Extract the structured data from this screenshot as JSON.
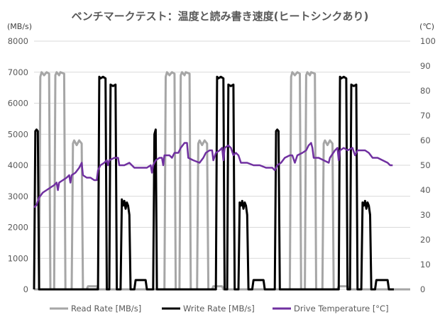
{
  "chart_data": {
    "type": "line",
    "title": "ベンチマークテスト：温度と読み書き速度(ヒートシンクあり)",
    "y_left_unit": "(MB/s)",
    "y_right_unit": "(℃)",
    "y_left_range": [
      0,
      8000
    ],
    "y_right_range": [
      0,
      100
    ],
    "y_left_ticks": [
      "0",
      "1000",
      "2000",
      "3000",
      "4000",
      "5000",
      "6000",
      "7000",
      "8000"
    ],
    "y_right_ticks": [
      "0",
      "10",
      "20",
      "30",
      "40",
      "50",
      "60",
      "70",
      "80",
      "90",
      "100"
    ],
    "x_range": [
      0,
      300
    ],
    "grid": true,
    "legend_position": "bottom",
    "colors": {
      "read": "#a6a6a6",
      "write": "#000000",
      "temp": "#7030a0"
    },
    "series": [
      {
        "name": "Read Rate [MB/s]",
        "axis": "left",
        "points": [
          [
            0,
            0
          ],
          [
            4,
            0
          ],
          [
            5,
            6850
          ],
          [
            6,
            7000
          ],
          [
            8,
            6900
          ],
          [
            10,
            7000
          ],
          [
            12,
            6950
          ],
          [
            13,
            0
          ],
          [
            16,
            0
          ],
          [
            17,
            6900
          ],
          [
            18,
            7000
          ],
          [
            20,
            6900
          ],
          [
            21,
            7000
          ],
          [
            24,
            6950
          ],
          [
            25,
            0
          ],
          [
            30,
            0
          ],
          [
            31,
            4700
          ],
          [
            32,
            4800
          ],
          [
            34,
            4650
          ],
          [
            36,
            4800
          ],
          [
            38,
            4700
          ],
          [
            39,
            0
          ],
          [
            42,
            0
          ],
          [
            43,
            100
          ],
          [
            50,
            100
          ],
          [
            51,
            0
          ],
          [
            104,
            0
          ],
          [
            105,
            6850
          ],
          [
            106,
            7000
          ],
          [
            108,
            6900
          ],
          [
            110,
            7000
          ],
          [
            112,
            6950
          ],
          [
            113,
            0
          ],
          [
            116,
            0
          ],
          [
            117,
            6900
          ],
          [
            118,
            7000
          ],
          [
            120,
            6900
          ],
          [
            121,
            7000
          ],
          [
            124,
            6950
          ],
          [
            125,
            0
          ],
          [
            130,
            0
          ],
          [
            131,
            4700
          ],
          [
            132,
            4800
          ],
          [
            134,
            4650
          ],
          [
            136,
            4800
          ],
          [
            138,
            4700
          ],
          [
            139,
            0
          ],
          [
            142,
            0
          ],
          [
            143,
            100
          ],
          [
            150,
            100
          ],
          [
            151,
            0
          ],
          [
            204,
            0
          ],
          [
            205,
            6850
          ],
          [
            206,
            7000
          ],
          [
            208,
            6900
          ],
          [
            210,
            7000
          ],
          [
            212,
            6950
          ],
          [
            213,
            0
          ],
          [
            216,
            0
          ],
          [
            217,
            6900
          ],
          [
            218,
            7000
          ],
          [
            220,
            6900
          ],
          [
            221,
            7000
          ],
          [
            224,
            6950
          ],
          [
            225,
            0
          ],
          [
            230,
            0
          ],
          [
            231,
            4700
          ],
          [
            232,
            4800
          ],
          [
            234,
            4650
          ],
          [
            236,
            4800
          ],
          [
            238,
            4700
          ],
          [
            239,
            0
          ],
          [
            242,
            0
          ],
          [
            243,
            100
          ],
          [
            250,
            100
          ],
          [
            251,
            0
          ],
          [
            300,
            0
          ]
        ]
      },
      {
        "name": "Write Rate [MB/s]",
        "axis": "left",
        "points": [
          [
            0,
            0
          ],
          [
            1,
            5100
          ],
          [
            2,
            5150
          ],
          [
            3,
            5100
          ],
          [
            4,
            0
          ],
          [
            51,
            0
          ],
          [
            52,
            6850
          ],
          [
            53,
            6800
          ],
          [
            55,
            6850
          ],
          [
            57,
            6800
          ],
          [
            58,
            0
          ],
          [
            60,
            0
          ],
          [
            61,
            6600
          ],
          [
            63,
            6550
          ],
          [
            65,
            6600
          ],
          [
            66,
            0
          ],
          [
            69,
            0
          ],
          [
            70,
            2900
          ],
          [
            71,
            2700
          ],
          [
            72,
            2850
          ],
          [
            73,
            2600
          ],
          [
            74,
            2800
          ],
          [
            75,
            2700
          ],
          [
            76,
            2400
          ],
          [
            77,
            0
          ],
          [
            80,
            0
          ],
          [
            81,
            300
          ],
          [
            89,
            300
          ],
          [
            90,
            0
          ],
          [
            95,
            0
          ],
          [
            96,
            5000
          ],
          [
            97,
            5150
          ],
          [
            98,
            0
          ],
          [
            145,
            0
          ],
          [
            146,
            6850
          ],
          [
            147,
            6800
          ],
          [
            149,
            6850
          ],
          [
            151,
            6800
          ],
          [
            152,
            0
          ],
          [
            154,
            0
          ],
          [
            155,
            6600
          ],
          [
            157,
            6550
          ],
          [
            159,
            6600
          ],
          [
            160,
            0
          ],
          [
            163,
            0
          ],
          [
            164,
            2800
          ],
          [
            165,
            2700
          ],
          [
            166,
            2850
          ],
          [
            167,
            2600
          ],
          [
            168,
            2800
          ],
          [
            169,
            2700
          ],
          [
            170,
            2400
          ],
          [
            171,
            0
          ],
          [
            174,
            0
          ],
          [
            175,
            300
          ],
          [
            183,
            300
          ],
          [
            184,
            0
          ],
          [
            192,
            0
          ],
          [
            193,
            5100
          ],
          [
            194,
            5150
          ],
          [
            195,
            5100
          ],
          [
            196,
            0
          ],
          [
            243,
            0
          ],
          [
            244,
            6850
          ],
          [
            245,
            6800
          ],
          [
            247,
            6850
          ],
          [
            249,
            6800
          ],
          [
            250,
            0
          ],
          [
            252,
            0
          ],
          [
            253,
            6600
          ],
          [
            255,
            6550
          ],
          [
            257,
            6600
          ],
          [
            258,
            0
          ],
          [
            261,
            0
          ],
          [
            262,
            2800
          ],
          [
            263,
            2700
          ],
          [
            264,
            2850
          ],
          [
            265,
            2600
          ],
          [
            266,
            2800
          ],
          [
            267,
            2700
          ],
          [
            268,
            2400
          ],
          [
            269,
            0
          ],
          [
            272,
            0
          ],
          [
            273,
            300
          ],
          [
            282,
            300
          ],
          [
            283,
            0
          ],
          [
            287,
            0
          ]
        ]
      },
      {
        "name": "Drive Temperature [°C]",
        "axis": "right",
        "points": [
          [
            0,
            33
          ],
          [
            2,
            34
          ],
          [
            4,
            37
          ],
          [
            7,
            39
          ],
          [
            10,
            40
          ],
          [
            13,
            41
          ],
          [
            16,
            42
          ],
          [
            18,
            43
          ],
          [
            19,
            40
          ],
          [
            20,
            43
          ],
          [
            23,
            44
          ],
          [
            26,
            45
          ],
          [
            28,
            46
          ],
          [
            29,
            43
          ],
          [
            30,
            46
          ],
          [
            33,
            47
          ],
          [
            36,
            49
          ],
          [
            37,
            50
          ],
          [
            38,
            51
          ],
          [
            39,
            46
          ],
          [
            42,
            45
          ],
          [
            45,
            45
          ],
          [
            48,
            44
          ],
          [
            50,
            44
          ],
          [
            51,
            48
          ],
          [
            53,
            50
          ],
          [
            56,
            51
          ],
          [
            58,
            52
          ],
          [
            59,
            50
          ],
          [
            60,
            52
          ],
          [
            64,
            53
          ],
          [
            67,
            53
          ],
          [
            68,
            50
          ],
          [
            72,
            50
          ],
          [
            76,
            51
          ],
          [
            80,
            49
          ],
          [
            85,
            49
          ],
          [
            90,
            49
          ],
          [
            93,
            50
          ],
          [
            94,
            47
          ],
          [
            95,
            50
          ],
          [
            97,
            52
          ],
          [
            100,
            53
          ],
          [
            102,
            53
          ],
          [
            103,
            50
          ],
          [
            104,
            54
          ],
          [
            108,
            54
          ],
          [
            110,
            53
          ],
          [
            112,
            55
          ],
          [
            115,
            55
          ],
          [
            117,
            57
          ],
          [
            120,
            59
          ],
          [
            122,
            59
          ],
          [
            123,
            53
          ],
          [
            127,
            52
          ],
          [
            132,
            51
          ],
          [
            135,
            53
          ],
          [
            137,
            55
          ],
          [
            140,
            56
          ],
          [
            142,
            56
          ],
          [
            143,
            52
          ],
          [
            145,
            55
          ],
          [
            148,
            56
          ],
          [
            150,
            57
          ],
          [
            151,
            52
          ],
          [
            152,
            57
          ],
          [
            155,
            58
          ],
          [
            157,
            57
          ],
          [
            159,
            54
          ],
          [
            161,
            55
          ],
          [
            163,
            54
          ],
          [
            165,
            51
          ],
          [
            170,
            51
          ],
          [
            175,
            50
          ],
          [
            180,
            50
          ],
          [
            185,
            49
          ],
          [
            190,
            49
          ],
          [
            192,
            48
          ],
          [
            194,
            50
          ],
          [
            197,
            51
          ],
          [
            200,
            53
          ],
          [
            204,
            54
          ],
          [
            206,
            54
          ],
          [
            208,
            51
          ],
          [
            210,
            54
          ],
          [
            214,
            55
          ],
          [
            217,
            56
          ],
          [
            219,
            58
          ],
          [
            221,
            59
          ],
          [
            222,
            57
          ],
          [
            223,
            53
          ],
          [
            227,
            53
          ],
          [
            231,
            52
          ],
          [
            235,
            51
          ],
          [
            236,
            53
          ],
          [
            240,
            56
          ],
          [
            242,
            57
          ],
          [
            243,
            52
          ],
          [
            244,
            56
          ],
          [
            247,
            57
          ],
          [
            250,
            56
          ],
          [
            254,
            57
          ],
          [
            256,
            54
          ],
          [
            258,
            56
          ],
          [
            261,
            56
          ],
          [
            264,
            56
          ],
          [
            267,
            55
          ],
          [
            270,
            53
          ],
          [
            274,
            53
          ],
          [
            278,
            52
          ],
          [
            282,
            51
          ],
          [
            284,
            50
          ],
          [
            286,
            50
          ]
        ]
      }
    ]
  }
}
